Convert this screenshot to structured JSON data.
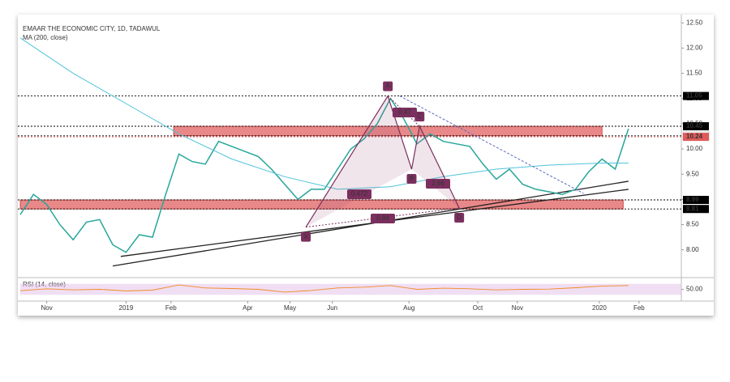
{
  "chart_data": {
    "type": "line",
    "title": "EMAAR THE ECONOMIC CITY, 1D, TADAWUL",
    "xlim": [
      0,
      250
    ],
    "ylim": [
      7.45,
      12.6
    ],
    "yticks": [
      {
        "value": 8,
        "label": "8.00"
      },
      {
        "value": 8.5,
        "label": "8.50"
      },
      {
        "value": 9,
        "label": "9.00"
      },
      {
        "value": 9.5,
        "label": "9.50"
      },
      {
        "value": 10,
        "label": "10.00"
      },
      {
        "value": 10.5,
        "label": "10.50"
      },
      {
        "value": 11,
        "label": "11.00"
      },
      {
        "value": 11.5,
        "label": "11.50"
      },
      {
        "value": 12,
        "label": "12.00"
      },
      {
        "value": 12.5,
        "label": "12.50"
      }
    ],
    "xticks": [
      {
        "value": 10,
        "label": "Nov"
      },
      {
        "value": 40,
        "label": "2019"
      },
      {
        "value": 57,
        "label": "Feb"
      },
      {
        "value": 86,
        "label": "Apr"
      },
      {
        "value": 102,
        "label": "May"
      },
      {
        "value": 118,
        "label": "Jun"
      },
      {
        "value": 147,
        "label": "Aug"
      },
      {
        "value": 173,
        "label": "Oct"
      },
      {
        "value": 188,
        "label": "Nov"
      },
      {
        "value": 219,
        "label": "2020"
      },
      {
        "value": 234,
        "label": "Feb"
      }
    ],
    "series": [
      {
        "color": "#26a69a",
        "x": [
          0,
          5,
          10,
          15,
          20,
          25,
          30,
          35,
          40,
          45,
          50,
          55,
          60,
          65,
          70,
          75,
          80,
          85,
          90,
          95,
          100,
          105,
          110,
          115,
          120,
          125,
          130,
          135,
          140,
          145,
          150,
          155,
          160,
          165,
          170,
          175,
          180,
          185,
          190,
          195,
          200,
          205,
          210,
          215,
          220,
          225,
          230
        ],
        "values": [
          8.7,
          9.1,
          8.9,
          8.5,
          8.2,
          8.55,
          8.6,
          8.1,
          7.95,
          8.3,
          8.25,
          9.1,
          9.9,
          9.75,
          9.7,
          10.15,
          10.05,
          9.95,
          9.85,
          9.6,
          9.3,
          9.0,
          9.2,
          9.2,
          9.6,
          10.0,
          10.2,
          10.5,
          11.0,
          10.6,
          10.1,
          10.3,
          10.15,
          10.1,
          10.05,
          9.7,
          9.4,
          9.6,
          9.3,
          9.2,
          9.15,
          9.1,
          9.2,
          9.55,
          9.8,
          9.6,
          10.4
        ]
      },
      {
        "name": "MA (200, close)",
        "color": "#4fc3d9",
        "x": [
          0,
          20,
          40,
          60,
          80,
          100,
          120,
          140,
          160,
          180,
          200,
          220,
          230
        ],
        "values": [
          12.2,
          11.5,
          10.9,
          10.3,
          9.8,
          9.45,
          9.2,
          9.25,
          9.45,
          9.6,
          9.68,
          9.72,
          9.72
        ]
      }
    ],
    "levels": [
      {
        "value": 11.05,
        "color": "#000000"
      },
      {
        "value": 10.45,
        "color": "#000000"
      },
      {
        "value": 10.26,
        "color": "#ffffff"
      },
      {
        "value": 10.24,
        "color": "#e05a5a"
      },
      {
        "value": 8.99,
        "color": "#000000"
      },
      {
        "value": 8.81,
        "color": "#000000"
      }
    ],
    "zones": [
      {
        "from": 58,
        "to": 220,
        "low": 10.26,
        "high": 10.45
      },
      {
        "from": 0,
        "to": 228,
        "low": 8.81,
        "high": 8.99
      }
    ],
    "trendlines": [
      {
        "x": [
          35,
          230
        ],
        "y": [
          7.68,
          9.36
        ]
      },
      {
        "x": [
          38,
          230
        ],
        "y": [
          7.87,
          9.2
        ]
      }
    ],
    "pattern": {
      "points": [
        {
          "label": "X",
          "x": 108,
          "y": 8.45
        },
        {
          "label": "A",
          "x": 139,
          "y": 11.05
        },
        {
          "label": "B",
          "x": 148,
          "y": 9.6
        },
        {
          "label": "C",
          "x": 151,
          "y": 10.45
        },
        {
          "label": "D",
          "x": 166,
          "y": 8.83
        }
      ],
      "ratios": [
        "0.472",
        "0.47",
        "2.66",
        "0.84"
      ]
    },
    "projection": {
      "x": [
        143.5,
        213
      ],
      "y": [
        11.05,
        9.12
      ]
    },
    "rsi": {
      "label": "RSI (14, close)",
      "color": "#f08a24",
      "ylim": [
        10,
        90
      ],
      "band": [
        30,
        70
      ],
      "yticks": [
        {
          "value": 50,
          "label": "50.00"
        }
      ],
      "x": [
        0,
        10,
        20,
        30,
        40,
        50,
        60,
        70,
        80,
        90,
        100,
        110,
        120,
        130,
        140,
        150,
        160,
        170,
        180,
        190,
        200,
        210,
        220,
        230
      ],
      "values": [
        45,
        52,
        48,
        50,
        44,
        47,
        66,
        55,
        53,
        50,
        40,
        46,
        55,
        58,
        64,
        50,
        54,
        52,
        48,
        50,
        51,
        56,
        62,
        64
      ]
    }
  }
}
